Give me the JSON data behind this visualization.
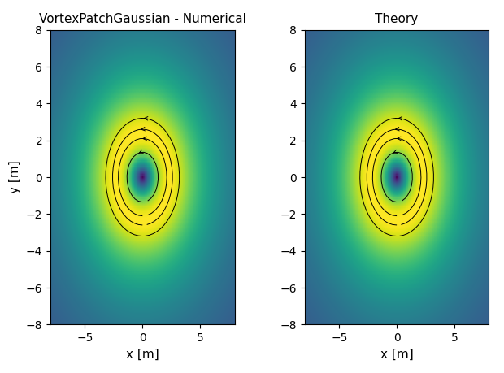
{
  "title_left": "VortexPatchGaussian - Numerical",
  "title_right": "Theory",
  "xlabel": "x [m]",
  "ylabel": "y [m]",
  "xlim": [
    -8,
    8
  ],
  "ylim": [
    -8,
    8
  ],
  "xticks": [
    -5,
    0,
    5
  ],
  "yticks": [
    -8,
    -6,
    -4,
    -2,
    0,
    2,
    4,
    6,
    8
  ],
  "colormap": "viridis",
  "background_color": "#ffffff",
  "sigma": 1.5,
  "grid_n": 300,
  "figsize": [
    6.2,
    4.59
  ],
  "dpi": 100
}
